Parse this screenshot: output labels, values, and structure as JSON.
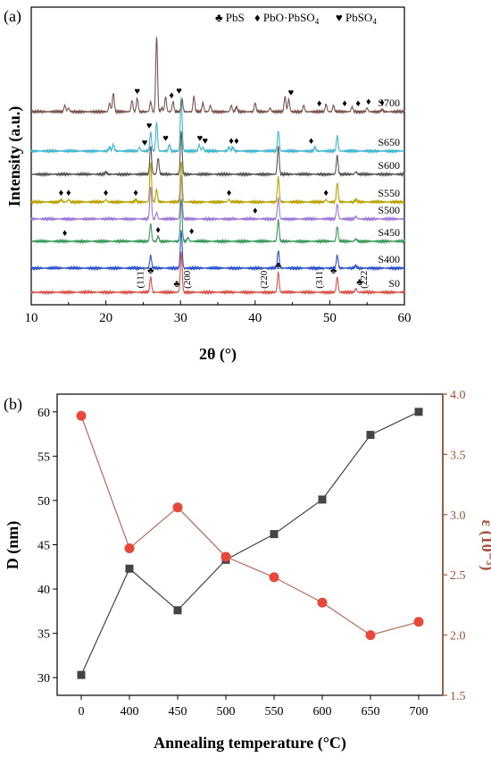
{
  "panel_a": {
    "label": "(a)",
    "legend": [
      {
        "symbol": "♣",
        "text": "PbS"
      },
      {
        "symbol": "♦",
        "text": "PbO·PbSO",
        "sub": "4"
      },
      {
        "symbol": "♥",
        "text": "PbSO",
        "sub": "4"
      }
    ]
  },
  "panel_b": {
    "label": "(b)"
  },
  "colors": {
    "S0": "#d9534a",
    "S400": "#2a52cc",
    "S450": "#3a9a5a",
    "S500": "#9c7ad6",
    "S550": "#b8a400",
    "S600": "#555555",
    "S650": "#3fb8d0",
    "S700": "#7a5550",
    "D_series": "#444444",
    "eps_series": "#e8473c",
    "eps_line": "#b56a5a",
    "right_axis": "#a0503c"
  },
  "chart_data": [
    {
      "type": "line",
      "panel": "a",
      "xlabel": "2θ (°)",
      "ylabel": "Intensity (a.u.)",
      "xlim": [
        10,
        60
      ],
      "xticks": [
        10,
        20,
        30,
        40,
        50,
        60
      ],
      "series": [
        {
          "name": "S0",
          "peaks": [
            [
              26.0,
              1.2
            ],
            [
              30.1,
              3.2
            ],
            [
              43.1,
              1.6
            ],
            [
              51.0,
              1.2
            ],
            [
              53.5,
              0.3
            ]
          ],
          "miller": [
            {
              "x": 25.0,
              "text": "(111)"
            },
            {
              "x": 31.3,
              "text": "(200)"
            },
            {
              "x": 41.6,
              "text": "(220)"
            },
            {
              "x": 49.0,
              "text": "(311)"
            },
            {
              "x": 55.0,
              "text": "(222)"
            }
          ],
          "markers": [
            {
              "x": 26.0,
              "s": "♣"
            },
            {
              "x": 29.5,
              "s": "♣"
            },
            {
              "x": 43.1,
              "s": "♣"
            },
            {
              "x": 50.5,
              "s": "♣"
            },
            {
              "x": 54.0,
              "s": "♣"
            }
          ]
        },
        {
          "name": "S400",
          "peaks": [
            [
              26.0,
              1.0
            ],
            [
              30.1,
              3.0
            ],
            [
              43.1,
              1.4
            ],
            [
              51.0,
              1.0
            ],
            [
              53.5,
              0.2
            ]
          ],
          "markers": []
        },
        {
          "name": "S450",
          "peaks": [
            [
              26.0,
              1.4
            ],
            [
              27.0,
              0.4
            ],
            [
              30.1,
              3.4
            ],
            [
              31.0,
              0.3
            ],
            [
              43.1,
              1.7
            ],
            [
              51.0,
              1.2
            ],
            [
              53.5,
              0.2
            ]
          ],
          "markers": [
            {
              "x": 14.5,
              "s": "♦"
            },
            {
              "x": 27.0,
              "s": "♦"
            },
            {
              "x": 31.5,
              "s": "♦"
            }
          ]
        },
        {
          "name": "S500",
          "peaks": [
            [
              26.0,
              2.6
            ],
            [
              26.8,
              0.5
            ],
            [
              30.1,
              3.5
            ],
            [
              43.1,
              1.7
            ],
            [
              51.0,
              1.2
            ],
            [
              53.5,
              0.2
            ]
          ],
          "markers": [
            {
              "x": 40.0,
              "s": "♦"
            }
          ]
        },
        {
          "name": "S550",
          "peaks": [
            [
              14.0,
              0.2
            ],
            [
              15.0,
              0.2
            ],
            [
              20.0,
              0.2
            ],
            [
              24.0,
              0.2
            ],
            [
              26.0,
              3.2
            ],
            [
              26.8,
              1.0
            ],
            [
              30.1,
              3.3
            ],
            [
              36.5,
              0.2
            ],
            [
              43.1,
              2.0
            ],
            [
              49.5,
              0.2
            ],
            [
              51.0,
              1.5
            ],
            [
              53.5,
              0.2
            ]
          ],
          "markers": [
            {
              "x": 14.0,
              "s": "♦"
            },
            {
              "x": 15.0,
              "s": "♦"
            },
            {
              "x": 20.0,
              "s": "♦"
            },
            {
              "x": 24.0,
              "s": "♦"
            },
            {
              "x": 36.5,
              "s": "♦"
            },
            {
              "x": 49.5,
              "s": "♦"
            }
          ]
        },
        {
          "name": "S600",
          "peaks": [
            [
              20.0,
              0.2
            ],
            [
              26.0,
              2.3
            ],
            [
              27.0,
              1.3
            ],
            [
              30.1,
              3.4
            ],
            [
              43.1,
              2.3
            ],
            [
              51.0,
              1.5
            ],
            [
              53.5,
              0.2
            ]
          ],
          "markers": []
        },
        {
          "name": "S650",
          "peaks": [
            [
              20.5,
              0.3
            ],
            [
              21.0,
              0.5
            ],
            [
              24.5,
              0.3
            ],
            [
              26.0,
              1.5
            ],
            [
              26.8,
              2.3
            ],
            [
              28.5,
              0.5
            ],
            [
              30.1,
              4.3
            ],
            [
              32.5,
              0.5
            ],
            [
              33.0,
              0.3
            ],
            [
              36.5,
              0.3
            ],
            [
              37.0,
              0.3
            ],
            [
              43.1,
              1.6
            ],
            [
              48.0,
              0.3
            ],
            [
              51.0,
              1.2
            ]
          ],
          "markers": [
            {
              "x": 25.2,
              "s": "♥"
            },
            {
              "x": 25.8,
              "s": "♥"
            },
            {
              "x": 28.0,
              "s": "♥"
            },
            {
              "x": 29.8,
              "s": "♥"
            },
            {
              "x": 32.6,
              "s": "♥"
            },
            {
              "x": 33.3,
              "s": "♥"
            },
            {
              "x": 36.8,
              "s": "♦"
            },
            {
              "x": 37.5,
              "s": "♦"
            },
            {
              "x": 47.5,
              "s": "♦"
            }
          ]
        },
        {
          "name": "S700",
          "peaks": [
            [
              14.5,
              0.5
            ],
            [
              15.0,
              0.3
            ],
            [
              20.5,
              0.7
            ],
            [
              21.0,
              1.5
            ],
            [
              23.5,
              0.9
            ],
            [
              24.2,
              1.1
            ],
            [
              26.0,
              0.8
            ],
            [
              26.8,
              6.0
            ],
            [
              27.5,
              0.3
            ],
            [
              28.0,
              1.2
            ],
            [
              29.0,
              0.8
            ],
            [
              30.2,
              1.0
            ],
            [
              31.8,
              1.2
            ],
            [
              33.0,
              0.7
            ],
            [
              34.0,
              0.5
            ],
            [
              36.8,
              0.5
            ],
            [
              37.5,
              0.4
            ],
            [
              40.0,
              0.7
            ],
            [
              42.0,
              0.3
            ],
            [
              44.0,
              1.2
            ],
            [
              44.5,
              1.0
            ],
            [
              46.5,
              0.5
            ],
            [
              49.5,
              0.6
            ],
            [
              50.5,
              0.5
            ],
            [
              53.0,
              0.4
            ],
            [
              55.0,
              0.3
            ],
            [
              57.0,
              0.2
            ]
          ],
          "markers": [
            {
              "x": 24.2,
              "s": "♥"
            },
            {
              "x": 28.8,
              "s": "♦"
            },
            {
              "x": 44.8,
              "s": "♥"
            },
            {
              "x": 48.6,
              "s": "♦"
            },
            {
              "x": 52.0,
              "s": "♦"
            },
            {
              "x": 53.8,
              "s": "♦"
            },
            {
              "x": 55.2,
              "s": "♦"
            },
            {
              "x": 57.0,
              "s": "♦"
            }
          ]
        }
      ]
    },
    {
      "type": "line",
      "panel": "b",
      "xlabel": "Annealing temperature (°C)",
      "ylabel": "D (nm)",
      "y2label": "ε (10⁻³)",
      "x": [
        0,
        400,
        450,
        500,
        550,
        600,
        650,
        700
      ],
      "xticks": [
        "0",
        "400",
        "450",
        "500",
        "550",
        "600",
        "650",
        "700"
      ],
      "ylim": [
        28,
        62
      ],
      "yticks": [
        30,
        35,
        40,
        45,
        50,
        55,
        60
      ],
      "y2lim": [
        1.5,
        4.0
      ],
      "y2ticks": [
        "1.5",
        "2.0",
        "2.5",
        "3.0",
        "3.5",
        "4.0"
      ],
      "series": [
        {
          "name": "D",
          "axis": "left",
          "values": [
            30.3,
            42.3,
            37.6,
            43.3,
            46.2,
            50.1,
            57.4,
            60.0
          ]
        },
        {
          "name": "ε",
          "axis": "right",
          "values": [
            3.82,
            2.72,
            3.06,
            2.65,
            2.48,
            2.27,
            2.0,
            2.11
          ]
        }
      ]
    }
  ]
}
